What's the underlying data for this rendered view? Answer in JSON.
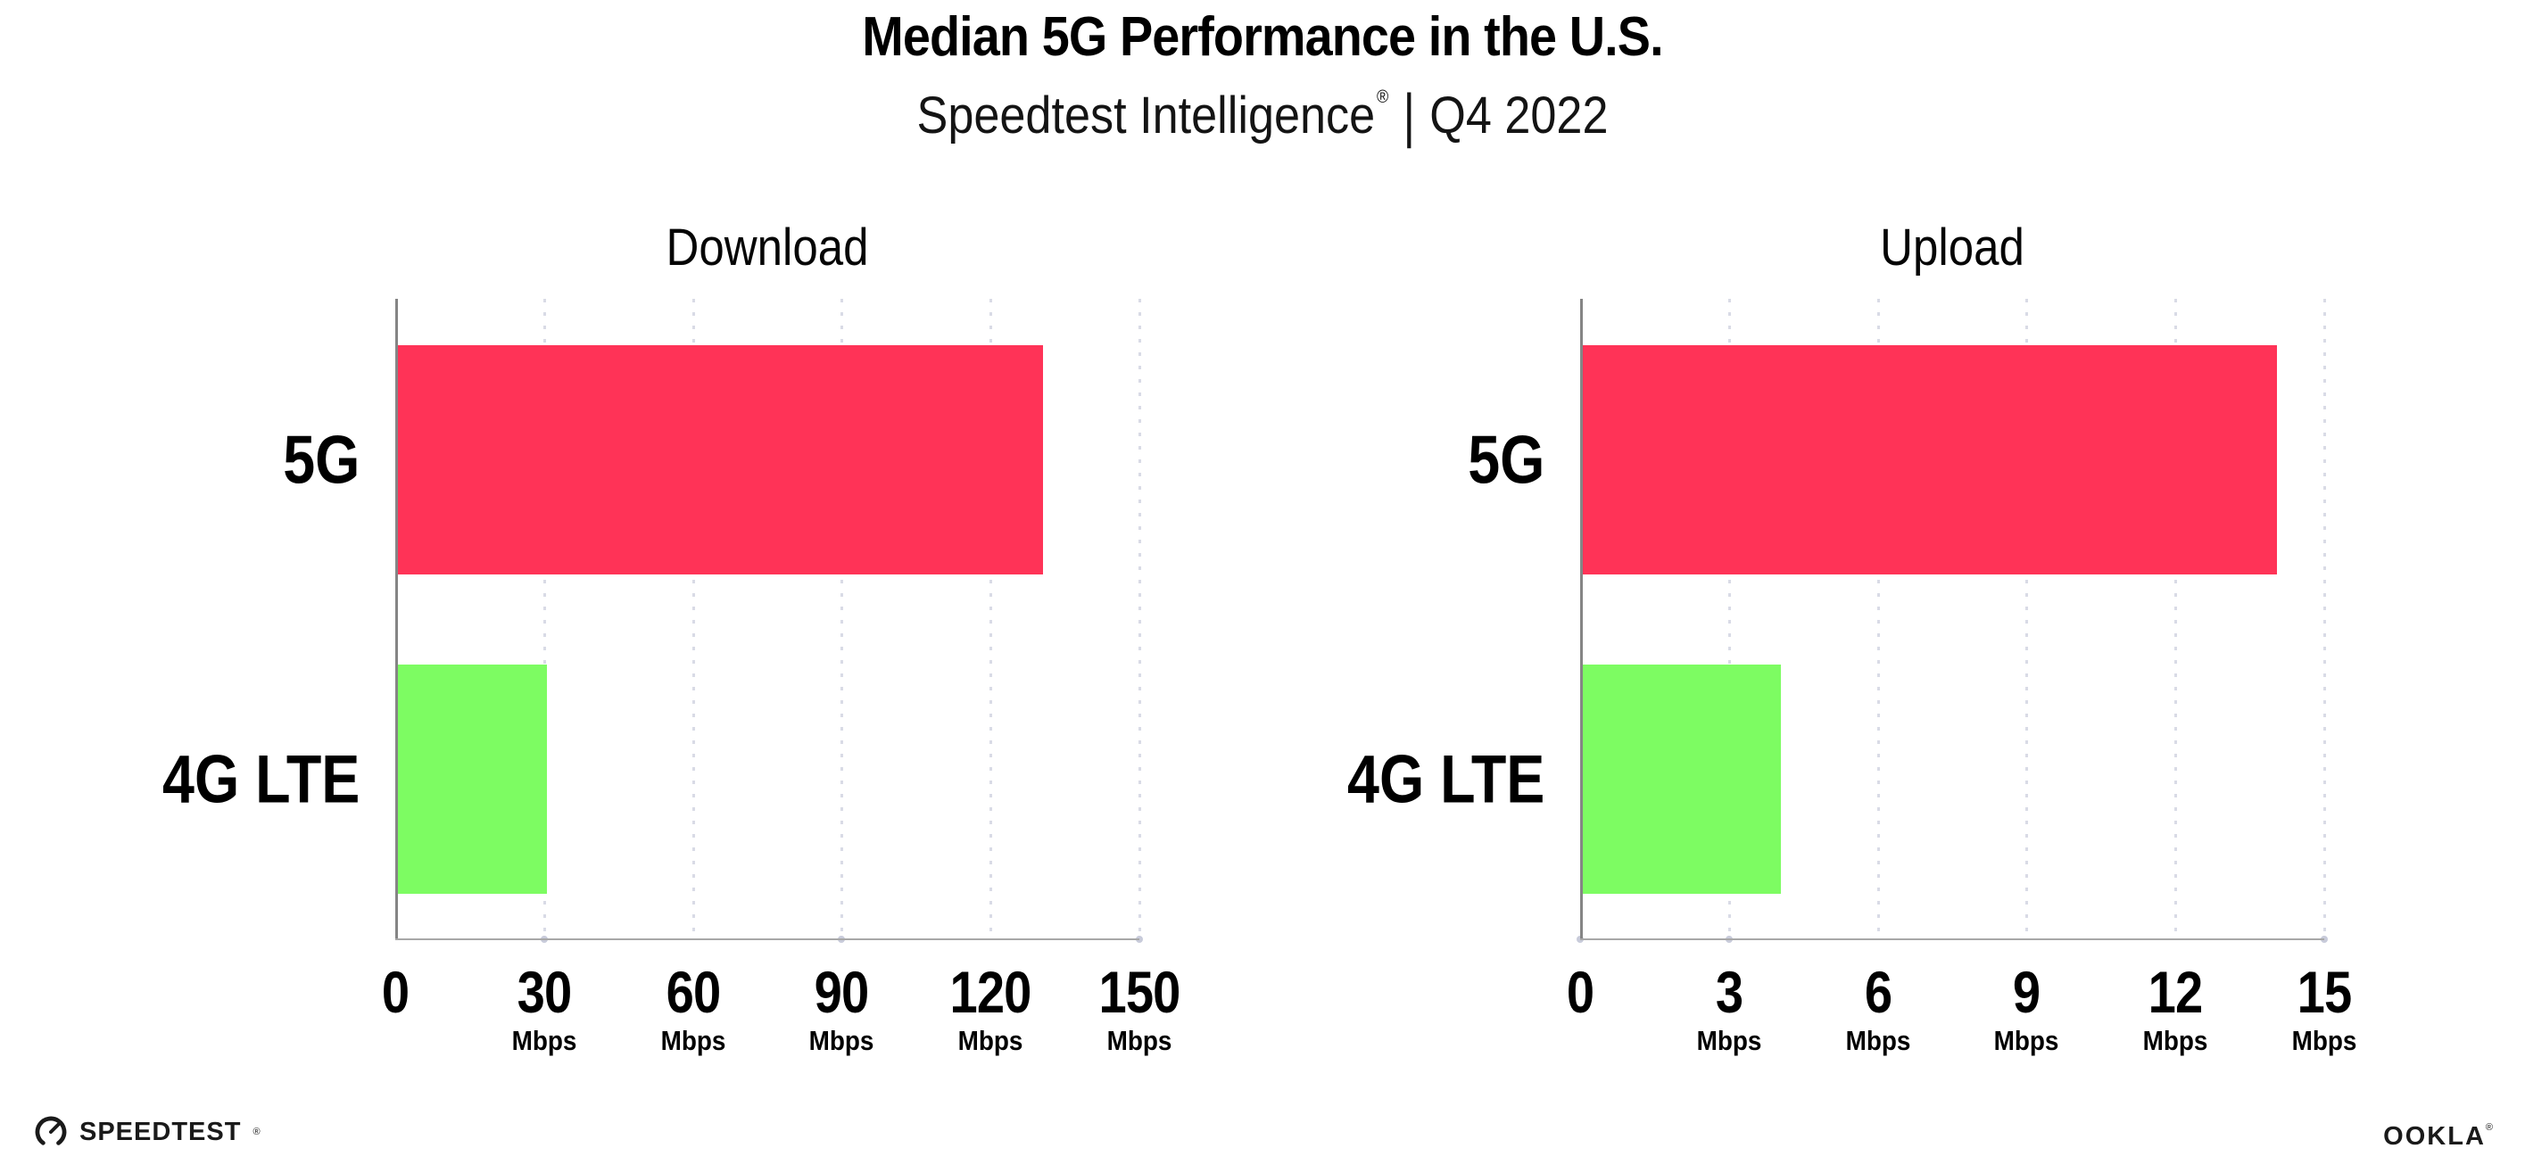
{
  "header": {
    "title": "Median 5G Performance in the U.S.",
    "subtitle": {
      "brand": "Speedtest Intelligence",
      "registered": "®",
      "separator": "|",
      "period": "Q4 2022"
    }
  },
  "chart_data": [
    {
      "type": "bar",
      "orientation": "horizontal",
      "title": "Download",
      "categories": [
        "5G",
        "4G LTE"
      ],
      "values": [
        130,
        30
      ],
      "unit": "Mbps",
      "xlim": [
        0,
        150
      ],
      "xticks": [
        {
          "value": "0",
          "unit": ""
        },
        {
          "value": "30",
          "unit": "Mbps"
        },
        {
          "value": "60",
          "unit": "Mbps"
        },
        {
          "value": "90",
          "unit": "Mbps"
        },
        {
          "value": "120",
          "unit": "Mbps"
        },
        {
          "value": "150",
          "unit": "Mbps"
        }
      ],
      "bar_colors": [
        "#ff3357",
        "#7dfc62"
      ],
      "grid": "dotted-vertical",
      "legend": "none"
    },
    {
      "type": "bar",
      "orientation": "horizontal",
      "title": "Upload",
      "categories": [
        "5G",
        "4G LTE"
      ],
      "values": [
        14,
        4
      ],
      "unit": "Mbps",
      "xlim": [
        0,
        15
      ],
      "xticks": [
        {
          "value": "0",
          "unit": ""
        },
        {
          "value": "3",
          "unit": "Mbps"
        },
        {
          "value": "6",
          "unit": "Mbps"
        },
        {
          "value": "9",
          "unit": "Mbps"
        },
        {
          "value": "12",
          "unit": "Mbps"
        },
        {
          "value": "15",
          "unit": "Mbps"
        }
      ],
      "bar_colors": [
        "#ff3357",
        "#7dfc62"
      ],
      "grid": "dotted-vertical",
      "legend": "none"
    }
  ],
  "colors": {
    "bar_5g": "#ff3357",
    "bar_4g_lte": "#7dfc62",
    "axis": "#8f8f8f",
    "gridline": "#d9dbe6",
    "text": "#000000",
    "background": "#ffffff"
  },
  "footer": {
    "speedtest_logo_text": "SPEEDTEST",
    "speedtest_registered": "®",
    "speedtest_icon": "gauge-icon",
    "ookla_logo_text": "OOKLA",
    "ookla_registered": "®"
  }
}
